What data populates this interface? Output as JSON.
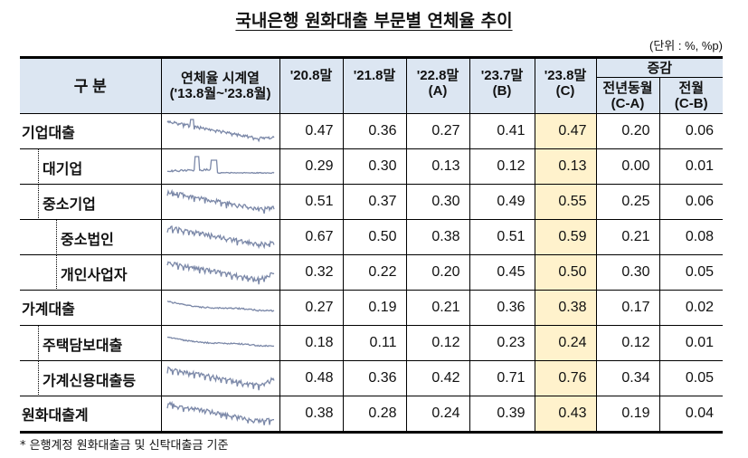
{
  "title": "국내은행 원화대출 부문별 연체율 추이",
  "unit": "(단위 : %, %p)",
  "headers": {
    "category": "구  분",
    "series": "연체율 시계열",
    "series_sub": "('13.8월~'23.8월)",
    "c1": "'20.8말",
    "c2": "'21.8말",
    "c3": "'22.8말",
    "c3s": "(A)",
    "c4": "'23.7말",
    "c4s": "(B)",
    "c5": "'23.8말",
    "c5s": "(C)",
    "change": "증감",
    "yoy": "전년동월",
    "yoys": "(C-A)",
    "mom": "전월",
    "moms": "(C-B)"
  },
  "rows": [
    {
      "label": "기업대출",
      "values": [
        "0.47",
        "0.36",
        "0.27",
        "0.41",
        "0.47",
        "0.20",
        "0.06"
      ]
    },
    {
      "label": "대기업",
      "values": [
        "0.29",
        "0.30",
        "0.13",
        "0.12",
        "0.13",
        "0.00",
        "0.01"
      ]
    },
    {
      "label": "중소기업",
      "values": [
        "0.51",
        "0.37",
        "0.30",
        "0.49",
        "0.55",
        "0.25",
        "0.06"
      ]
    },
    {
      "label": "중소법인",
      "values": [
        "0.67",
        "0.50",
        "0.38",
        "0.51",
        "0.59",
        "0.21",
        "0.08"
      ]
    },
    {
      "label": "개인사업자",
      "values": [
        "0.32",
        "0.22",
        "0.20",
        "0.45",
        "0.50",
        "0.30",
        "0.05"
      ]
    },
    {
      "label": "가계대출",
      "values": [
        "0.27",
        "0.19",
        "0.21",
        "0.36",
        "0.38",
        "0.17",
        "0.02"
      ]
    },
    {
      "label": "주택담보대출",
      "values": [
        "0.18",
        "0.11",
        "0.12",
        "0.23",
        "0.24",
        "0.12",
        "0.01"
      ]
    },
    {
      "label": "가계신용대출등",
      "values": [
        "0.48",
        "0.36",
        "0.42",
        "0.71",
        "0.76",
        "0.34",
        "0.05"
      ]
    },
    {
      "label": "원화대출계",
      "values": [
        "0.38",
        "0.28",
        "0.24",
        "0.39",
        "0.43",
        "0.19",
        "0.04"
      ]
    }
  ],
  "footnote": "* 은행계정 원화대출금 및 신탁대출금 기준",
  "colors": {
    "header": "#dce6f2",
    "highlight": "#fff2cc",
    "line": "#7b88a8"
  }
}
